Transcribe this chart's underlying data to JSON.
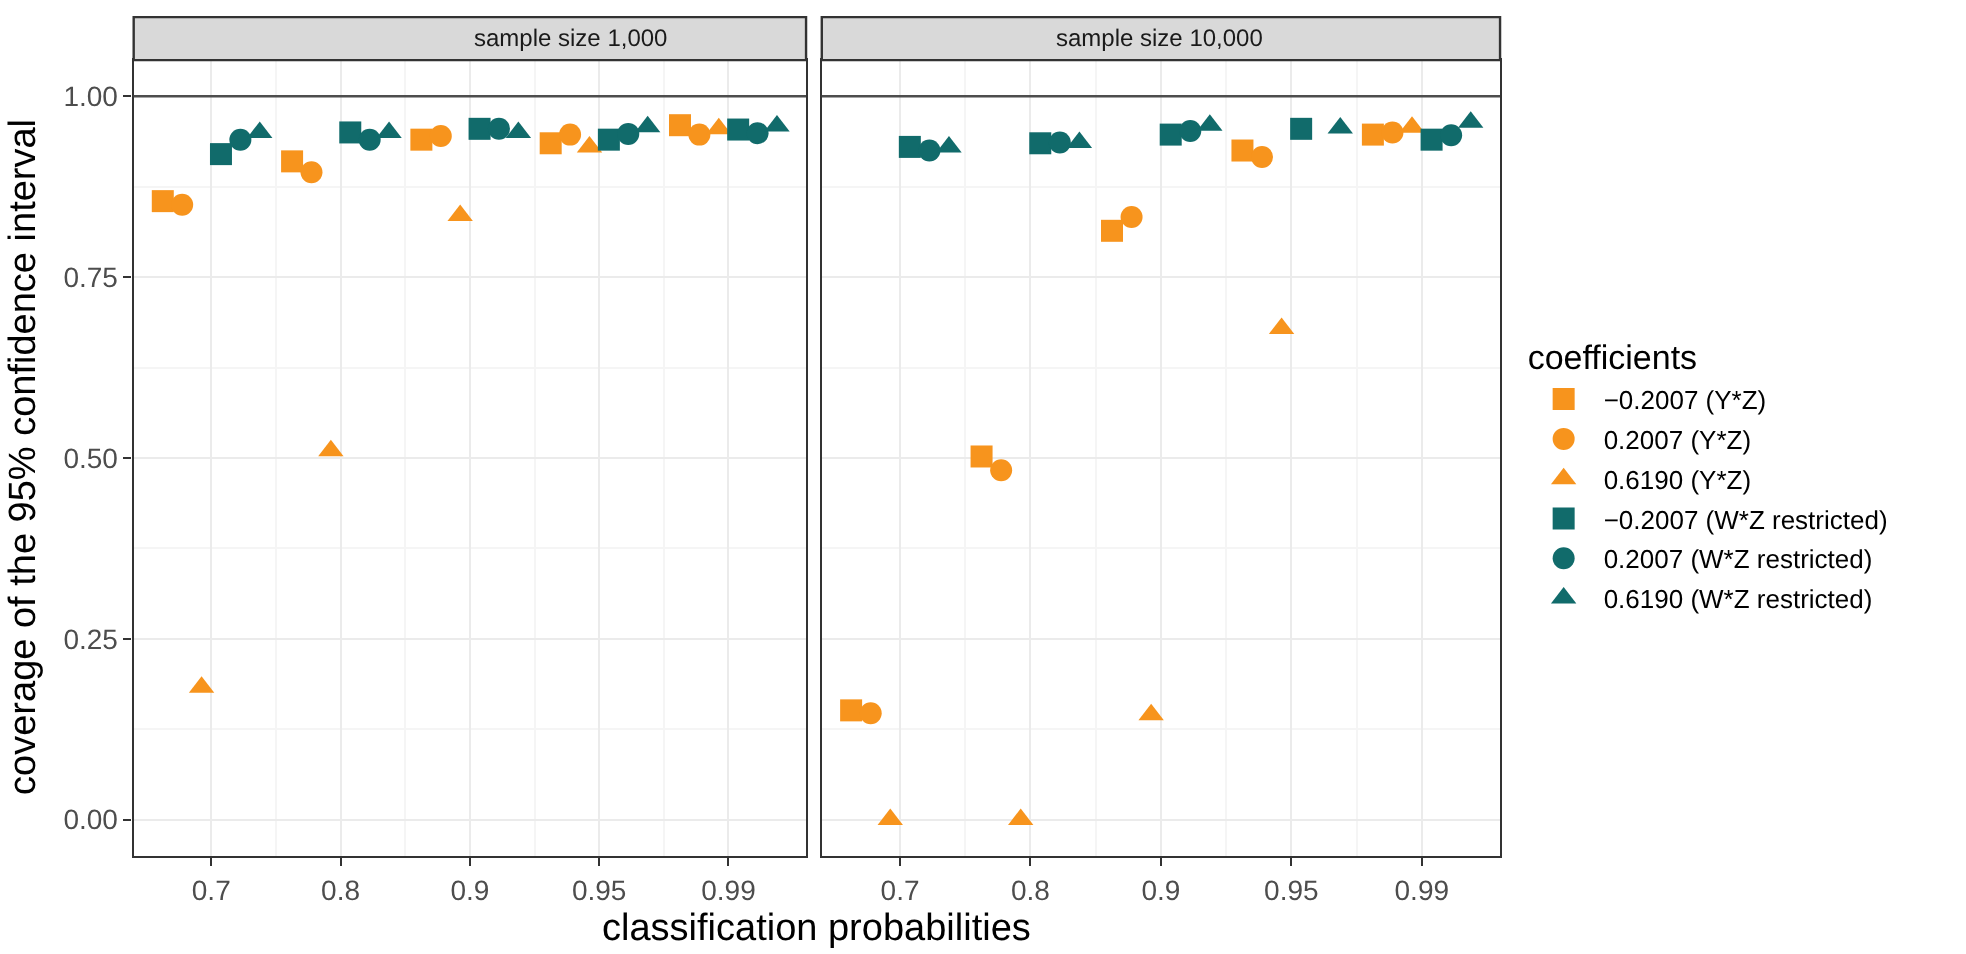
{
  "chart_data": [
    {
      "type": "scatter",
      "title": "sample size 1,000",
      "xlabel": "classification probabilities",
      "ylabel": "coverage of the 95% confidence interval",
      "legend_title": "coefficients",
      "legend": "right",
      "grid": true,
      "categories": [
        "0.7",
        "0.8",
        "0.9",
        "0.95",
        "0.99"
      ],
      "ylim": [
        -0.05,
        1.05
      ],
      "yticks": [
        {
          "value": 0,
          "label": "0.00"
        },
        {
          "value": 0.25,
          "label": "0.25"
        },
        {
          "value": 0.5,
          "label": "0.50"
        },
        {
          "value": 0.75,
          "label": "0.75"
        },
        {
          "value": 1,
          "label": "1.00"
        }
      ],
      "ref_lines": [
        {
          "axis": "y",
          "value": 1,
          "color": "#4d4d4d"
        }
      ],
      "series": [
        {
          "name": "−0.2007 (Y*Z)",
          "color": "#f7941d",
          "marker": "square",
          "values": [
            0.855,
            0.91,
            0.94,
            0.935,
            0.96
          ]
        },
        {
          "name": "0.2007 (Y*Z)",
          "color": "#f7941d",
          "marker": "circle",
          "values": [
            0.85,
            0.895,
            0.945,
            0.947,
            0.947
          ]
        },
        {
          "name": "0.6190 (Y*Z)",
          "color": "#f7941d",
          "marker": "triangle",
          "values": [
            0.183,
            0.51,
            0.835,
            0.93,
            0.955
          ]
        },
        {
          "name": "−0.2007 (W*Z restricted)",
          "color": "#116b6b",
          "marker": "square",
          "values": [
            0.92,
            0.95,
            0.955,
            0.94,
            0.954
          ]
        },
        {
          "name": "0.2007 (W*Z restricted)",
          "color": "#116b6b",
          "marker": "circle",
          "values": [
            0.94,
            0.94,
            0.955,
            0.948,
            0.949
          ]
        },
        {
          "name": "0.6190 (W*Z restricted)",
          "color": "#116b6b",
          "marker": "triangle",
          "values": [
            0.95,
            0.95,
            0.95,
            0.958,
            0.959
          ]
        }
      ]
    },
    {
      "type": "scatter",
      "title": "sample size 10,000",
      "legend": "right",
      "grid": true,
      "tick_labels": "x",
      "categories": [
        "0.7",
        "0.8",
        "0.9",
        "0.95",
        "0.99"
      ],
      "ylim": [
        -0.05,
        1.05
      ],
      "yticks": [
        0,
        0.25,
        0.5,
        0.75,
        1
      ],
      "ref_lines": [
        {
          "axis": "y",
          "value": 1,
          "color": "#4d4d4d"
        }
      ],
      "series": [
        {
          "color": "#f7941d",
          "marker": "square",
          "values": [
            0.151,
            0.502,
            0.814,
            0.925,
            0.947
          ]
        },
        {
          "color": "#f7941d",
          "marker": "circle",
          "values": [
            0.147,
            0.483,
            0.833,
            0.916,
            0.95
          ]
        },
        {
          "color": "#f7941d",
          "marker": "triangle",
          "values": [
            0.0,
            0.0,
            0.145,
            0.679,
            0.957
          ]
        },
        {
          "color": "#116b6b",
          "marker": "square",
          "values": [
            0.93,
            0.935,
            0.947,
            0.955,
            0.94
          ]
        },
        {
          "color": "#116b6b",
          "marker": "circle",
          "values": [
            0.925,
            0.936,
            0.952,
            null,
            0.946
          ]
        },
        {
          "color": "#116b6b",
          "marker": "triangle",
          "values": [
            0.93,
            0.936,
            0.96,
            0.956,
            0.964
          ]
        }
      ]
    }
  ]
}
